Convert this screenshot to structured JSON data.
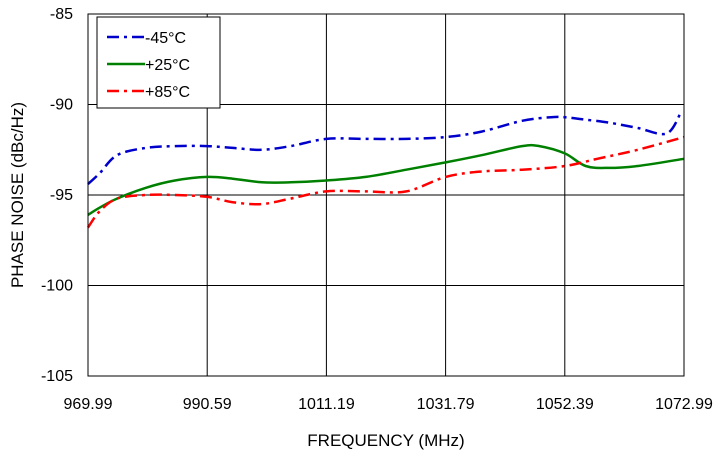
{
  "chart_data": {
    "type": "line",
    "title": "",
    "xlabel": "FREQUENCY (MHz)",
    "ylabel": "PHASE NOISE  (dBc/Hz)",
    "xlim": [
      969.99,
      1072.99
    ],
    "ylim": [
      -105,
      -85
    ],
    "x_ticks": [
      "969.99",
      "990.59",
      "1011.19",
      "1031.79",
      "1052.39",
      "1072.99"
    ],
    "y_ticks": [
      "-85",
      "-90",
      "-95",
      "-100",
      "-105"
    ],
    "y_tick_values": [
      -85,
      -90,
      -95,
      -100,
      -105
    ],
    "grid": true,
    "legend": "top-left",
    "series": [
      {
        "name": "-45°C",
        "color": "#0000cc",
        "dash": "dash-dot",
        "x": [
          969.99,
          972.0,
          975.0,
          980.0,
          985.0,
          990.59,
          995.0,
          1000.0,
          1005.0,
          1011.19,
          1018.0,
          1025.0,
          1031.79,
          1038.0,
          1045.0,
          1050.0,
          1052.39,
          1055.0,
          1060.0,
          1065.0,
          1070.0,
          1072.5
        ],
        "values": [
          -94.4,
          -93.8,
          -92.8,
          -92.4,
          -92.3,
          -92.3,
          -92.4,
          -92.5,
          -92.3,
          -91.9,
          -91.9,
          -91.9,
          -91.8,
          -91.5,
          -90.9,
          -90.7,
          -90.7,
          -90.8,
          -91.0,
          -91.3,
          -91.6,
          -90.4
        ]
      },
      {
        "name": "+25°C",
        "color": "#008000",
        "dash": "solid",
        "x": [
          969.99,
          972.0,
          975.0,
          980.0,
          985.0,
          990.59,
          995.0,
          1000.0,
          1005.0,
          1011.19,
          1018.0,
          1025.0,
          1031.79,
          1038.0,
          1045.0,
          1048.0,
          1052.39,
          1056.0,
          1060.0,
          1065.0,
          1072.99
        ],
        "values": [
          -96.1,
          -95.7,
          -95.2,
          -94.6,
          -94.2,
          -94.0,
          -94.1,
          -94.3,
          -94.3,
          -94.2,
          -94.0,
          -93.6,
          -93.2,
          -92.8,
          -92.3,
          -92.3,
          -92.7,
          -93.4,
          -93.5,
          -93.4,
          -93.0
        ]
      },
      {
        "name": "+85°C",
        "color": "#ff0000",
        "dash": "dash-dot",
        "x": [
          969.99,
          972.0,
          975.0,
          980.0,
          985.0,
          990.59,
          995.0,
          1000.0,
          1005.0,
          1011.19,
          1018.0,
          1025.0,
          1031.79,
          1038.0,
          1045.0,
          1052.39,
          1058.0,
          1065.0,
          1072.99
        ],
        "values": [
          -96.8,
          -95.9,
          -95.2,
          -95.0,
          -95.0,
          -95.1,
          -95.4,
          -95.5,
          -95.2,
          -94.8,
          -94.8,
          -94.8,
          -94.0,
          -93.7,
          -93.6,
          -93.4,
          -93.0,
          -92.5,
          -91.8
        ]
      }
    ]
  }
}
